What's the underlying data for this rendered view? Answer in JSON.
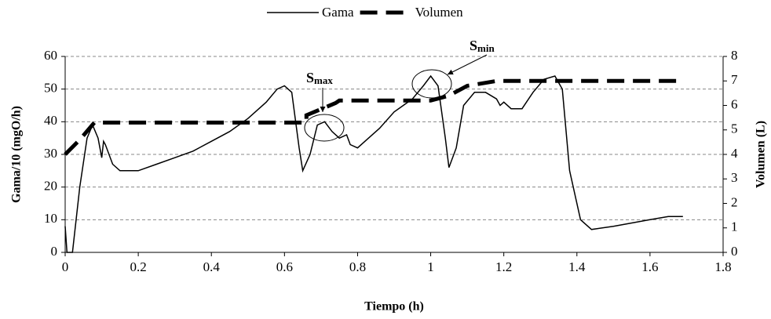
{
  "chart_data": {
    "type": "line",
    "xlabel": "Tiempo (h)",
    "ylabel": "Gama/10 (mgO/h)",
    "y2label": "Volumen (L)",
    "xlim": [
      0,
      1.8
    ],
    "xticks": [
      0,
      0.2,
      0.4,
      0.6,
      0.8,
      1,
      1.2,
      1.4,
      1.6,
      1.8
    ],
    "ylim": [
      0,
      60
    ],
    "yticks": [
      0,
      10,
      20,
      30,
      40,
      50,
      60
    ],
    "y2lim": [
      0,
      8
    ],
    "y2ticks": [
      0,
      1,
      2,
      3,
      4,
      5,
      6,
      7,
      8
    ],
    "grid": true,
    "legend": "top",
    "annotations": [
      {
        "text": "S",
        "sub": "max"
      },
      {
        "text": "S",
        "sub": "min"
      }
    ],
    "series": [
      {
        "name": "Gama",
        "color": "#000000",
        "style": "solid",
        "x": [
          0,
          0.005,
          0.02,
          0.04,
          0.06,
          0.075,
          0.09,
          0.1,
          0.105,
          0.11,
          0.13,
          0.15,
          0.2,
          0.25,
          0.3,
          0.35,
          0.4,
          0.45,
          0.5,
          0.55,
          0.58,
          0.6,
          0.62,
          0.64,
          0.65,
          0.67,
          0.69,
          0.71,
          0.73,
          0.75,
          0.77,
          0.78,
          0.8,
          0.83,
          0.86,
          0.9,
          0.95,
          0.98,
          1.0,
          1.02,
          1.04,
          1.05,
          1.07,
          1.09,
          1.12,
          1.15,
          1.18,
          1.19,
          1.2,
          1.22,
          1.25,
          1.28,
          1.31,
          1.34,
          1.36,
          1.38,
          1.41,
          1.44,
          1.5,
          1.6,
          1.65,
          1.69
        ],
        "values": [
          8,
          0,
          0,
          20,
          35,
          39,
          35,
          29,
          34,
          33,
          27,
          25,
          25,
          27,
          29,
          31,
          34,
          37,
          41,
          46,
          50,
          51,
          49,
          32,
          25,
          30,
          39,
          40,
          37,
          35,
          36,
          33,
          32,
          35,
          38,
          43,
          47,
          51,
          54,
          51,
          35,
          26,
          32,
          45,
          49,
          49,
          47,
          45,
          46,
          44,
          44,
          49,
          53,
          54,
          50,
          25,
          10,
          7,
          8,
          10,
          11,
          11
        ]
      },
      {
        "name": "Volumen",
        "color": "#000000",
        "style": "dashed",
        "axis": "y2",
        "x": [
          0,
          0.04,
          0.08,
          0.66,
          0.66,
          0.74,
          0.75,
          0.98,
          1.0,
          1.05,
          1.1,
          1.18,
          1.69
        ],
        "values": [
          4.0,
          4.6,
          5.3,
          5.3,
          5.6,
          6.1,
          6.2,
          6.2,
          6.2,
          6.4,
          6.8,
          7.0,
          7.0
        ]
      }
    ]
  }
}
